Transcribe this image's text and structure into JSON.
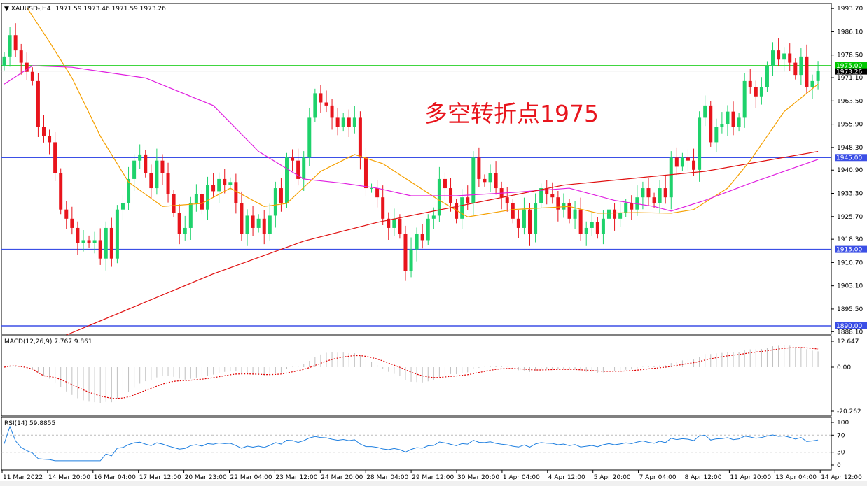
{
  "header": {
    "symbol": "XAUUSD-,H4",
    "ohlc": "1971.59 1973.46 1971.59 1973.26"
  },
  "annotation": "多空转折点1975",
  "colors": {
    "bull": "#1ed26b",
    "bear": "#e8141c",
    "level_green": "#00c800",
    "level_blue": "#3b4fe6",
    "ma_fast": "#f5a000",
    "ma_mid": "#e020e0",
    "ma_slow": "#e01010",
    "rsi": "#1e7fe0",
    "macd_signal": "#e00000",
    "macd_hist": "#c0c0c0"
  },
  "chart_data": [
    {
      "type": "candlestick",
      "title": "XAUUSD-,H4",
      "ylim": [
        1888.1,
        1993.7
      ],
      "y_ticks": [
        "1993.70",
        "1986.10",
        "1978.50",
        "1971.10",
        "1963.50",
        "1955.90",
        "1948.30",
        "1940.90",
        "1933.30",
        "1925.70",
        "1918.30",
        "1910.70",
        "1903.10",
        "1895.50",
        "1888.10"
      ],
      "x_ticks": [
        "11 Mar 2022",
        "14 Mar 20:00",
        "16 Mar 04:00",
        "17 Mar 12:00",
        "20 Mar 23:00",
        "22 Mar 04:00",
        "23 Mar 12:00",
        "24 Mar 20:00",
        "28 Mar 04:00",
        "29 Mar 12:00",
        "30 Mar 20:00",
        "1 Apr 04:00",
        "4 Apr 12:00",
        "5 Apr 20:00",
        "7 Apr 04:00",
        "8 Apr 12:00",
        "11 Apr 20:00",
        "13 Apr 04:00",
        "14 Apr 12:00"
      ],
      "first_open": 1975,
      "closes": [
        1978,
        1985,
        1980,
        1976,
        1973,
        1970,
        1955,
        1952,
        1950,
        1940,
        1928,
        1925,
        1922,
        1917,
        1918,
        1917,
        1918,
        1912,
        1922,
        1912,
        1928,
        1930,
        1938,
        1944,
        1946,
        1940,
        1935,
        1944,
        1940,
        1933,
        1927,
        1920,
        1922,
        1930,
        1933,
        1928,
        1936,
        1934,
        1938,
        1936,
        1937,
        1930,
        1920,
        1926,
        1922,
        1925,
        1920,
        1926,
        1935,
        1930,
        1945,
        1944,
        1938,
        1945,
        1958,
        1966,
        1963,
        1962,
        1958,
        1955,
        1958,
        1955,
        1958,
        1945,
        1935,
        1935,
        1932,
        1925,
        1922,
        1925,
        1920,
        1908,
        1915,
        1920,
        1918,
        1925,
        1926,
        1938,
        1935,
        1930,
        1925,
        1932,
        1930,
        1945,
        1938,
        1937,
        1940,
        1935,
        1932,
        1930,
        1925,
        1922,
        1928,
        1920,
        1930,
        1935,
        1933,
        1932,
        1928,
        1930,
        1925,
        1928,
        1920,
        1922,
        1924,
        1920,
        1925,
        1928,
        1925,
        1927,
        1930,
        1928,
        1932,
        1935,
        1932,
        1930,
        1935,
        1932,
        1945,
        1942,
        1945,
        1944,
        1941,
        1958,
        1962,
        1950,
        1955,
        1956,
        1960,
        1955,
        1958,
        1970,
        1968,
        1965,
        1968,
        1975,
        1980,
        1977,
        1979,
        1976,
        1972,
        1978,
        1968,
        1970,
        1973.26
      ],
      "current_price": "1973.26",
      "levels": [
        {
          "value": "1975.00",
          "color": "green"
        },
        {
          "value": "1945.00",
          "color": "blue"
        },
        {
          "value": "1915.00",
          "color": "blue"
        },
        {
          "value": "1890.00",
          "color": "blue"
        }
      ],
      "moving_averages": [
        {
          "color": "ma_fast",
          "points": [
            [
              4,
              1994
            ],
            [
              8,
              1982.8
            ],
            [
              12,
              1971
            ],
            [
              17,
              1952
            ],
            [
              22,
              1937
            ],
            [
              28,
              1929
            ],
            [
              35,
              1930
            ],
            [
              40,
              1935
            ],
            [
              46,
              1929
            ],
            [
              50,
              1930
            ],
            [
              56,
              1940.5
            ],
            [
              62,
              1946
            ],
            [
              67,
              1943
            ],
            [
              72,
              1937
            ],
            [
              77,
              1931
            ],
            [
              82,
              1925.6
            ],
            [
              90,
              1928
            ],
            [
              100,
              1929
            ],
            [
              105,
              1926.8
            ],
            [
              112,
              1927
            ],
            [
              118,
              1926.8
            ],
            [
              122,
              1928
            ],
            [
              128,
              1935
            ],
            [
              132,
              1944
            ],
            [
              138,
              1960
            ],
            [
              144,
              1969
            ]
          ]
        },
        {
          "color": "ma_mid",
          "points": [
            [
              0,
              1969
            ],
            [
              5,
              1975
            ],
            [
              12,
              1974.5
            ],
            [
              25,
              1971
            ],
            [
              37,
              1962
            ],
            [
              45,
              1947
            ],
            [
              53,
              1938
            ],
            [
              60,
              1936.6
            ],
            [
              66,
              1935
            ],
            [
              72,
              1932.5
            ],
            [
              80,
              1932.5
            ],
            [
              90,
              1933.6
            ],
            [
              100,
              1935
            ],
            [
              108,
              1931
            ],
            [
              115,
              1929
            ],
            [
              118,
              1927.5
            ],
            [
              124,
              1931
            ],
            [
              132,
              1936.6
            ],
            [
              144,
              1944.4
            ]
          ]
        },
        {
          "color": "ma_slow",
          "points": [
            [
              11,
              1887
            ],
            [
              37,
              1907
            ],
            [
              53,
              1917.7
            ],
            [
              66,
              1923.8
            ],
            [
              99,
              1936
            ],
            [
              124,
              1940.5
            ],
            [
              144,
              1947
            ]
          ]
        }
      ]
    },
    {
      "type": "bar",
      "title": "MACD(12,26,9) 7.767 9.861",
      "ylim": [
        -20.262,
        12.647
      ],
      "y_ticks": [
        "12.647",
        "0.00",
        "-20.262"
      ]
    },
    {
      "type": "line",
      "title": "RSI(14) 59.8855",
      "ylim": [
        0,
        100
      ],
      "y_ticks": [
        "100",
        "70",
        "30",
        "0"
      ],
      "levels": [
        70,
        30
      ]
    }
  ]
}
